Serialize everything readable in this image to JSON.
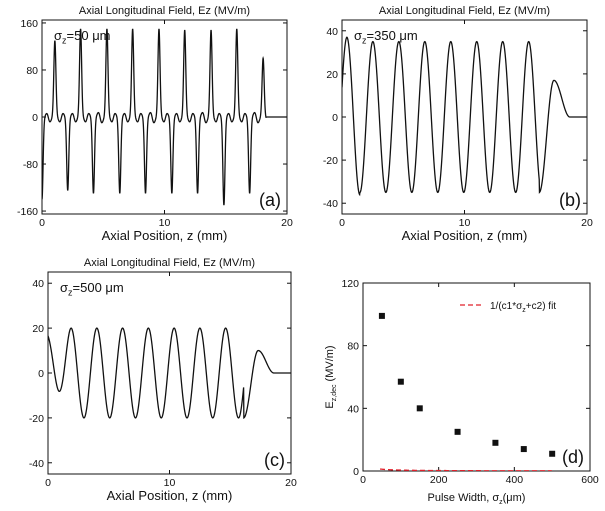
{
  "chart_data": [
    {
      "panel": "(a)",
      "type": "line",
      "title": "Axial Longitudinal Field, Ez (MV/m)",
      "annotation": "σz=50 μm",
      "xlabel": "Axial Position, z (mm)",
      "ylabel": "",
      "xlim": [
        0,
        20
      ],
      "ylim": [
        -165,
        165
      ],
      "xticks": [
        0,
        10,
        20
      ],
      "yticks": [
        -160,
        -80,
        0,
        80,
        160
      ],
      "xtick_labels": [
        "0",
        "10",
        "20"
      ],
      "ytick_labels": [
        "-160",
        "-80",
        "0",
        "80",
        "160"
      ],
      "grid": false,
      "series": [
        {
          "period_mm": 2.12,
          "positive_peaks": [
            [
              1.05,
              130
            ],
            [
              3.15,
              150
            ],
            [
              5.3,
              150
            ],
            [
              7.4,
              150
            ],
            [
              9.55,
              150
            ],
            [
              11.65,
              148
            ],
            [
              13.8,
              148
            ],
            [
              15.9,
              150
            ],
            [
              18.05,
              100
            ]
          ],
          "negative_peaks": [
            [
              0.0,
              -140
            ],
            [
              2.1,
              -125
            ],
            [
              4.2,
              -130
            ],
            [
              6.35,
              -130
            ],
            [
              8.45,
              -130
            ],
            [
              10.6,
              -130
            ],
            [
              12.7,
              -130
            ],
            [
              14.85,
              -150
            ],
            [
              16.95,
              -130
            ]
          ],
          "tail_start_mm": 18.3
        }
      ]
    },
    {
      "panel": "(b)",
      "type": "line",
      "title": "Axial Longitudinal Field, Ez (MV/m)",
      "annotation": "σz=350 μm",
      "xlabel": "Axial Position, z (mm)",
      "ylabel": "",
      "xlim": [
        0,
        20
      ],
      "ylim": [
        -45,
        45
      ],
      "xticks": [
        0,
        10,
        20
      ],
      "yticks": [
        -40,
        -20,
        0,
        20,
        40
      ],
      "xtick_labels": [
        "0",
        "10",
        "20"
      ],
      "ytick_labels": [
        "-40",
        "-20",
        "0",
        "20",
        "40"
      ],
      "grid": false,
      "series": [
        {
          "period_mm": 2.12,
          "amplitude": 35,
          "first_max_mm": 0.4,
          "first_max_value": 37,
          "last_min_mm": 16.1,
          "end_bump_mm": 17.3,
          "end_bump_value": 17,
          "tail_start_mm": 18.6
        }
      ]
    },
    {
      "panel": "(c)",
      "type": "line",
      "title": "Axial Longitudinal Field, Ez (MV/m)",
      "annotation": "σz=500 μm",
      "xlabel": "Axial Position, z (mm)",
      "ylabel": "",
      "xlim": [
        0,
        20
      ],
      "ylim": [
        -45,
        45
      ],
      "xticks": [
        0,
        10,
        20
      ],
      "yticks": [
        -40,
        -20,
        0,
        20,
        40
      ],
      "xtick_labels": [
        "0",
        "10",
        "20"
      ],
      "ytick_labels": [
        "-40",
        "-20",
        "0",
        "20",
        "40"
      ],
      "grid": false,
      "series": [
        {
          "period_mm": 2.12,
          "amplitude": 20,
          "start_value": 17,
          "first_max_mm": 1.9,
          "last_min_mm": 16.1,
          "end_bump_mm": 17.3,
          "end_bump_value": 10,
          "tail_start_mm": 18.6
        }
      ]
    },
    {
      "panel": "(d)",
      "type": "scatter",
      "title": "",
      "xlabel": "Pulse Width, σz(μm)",
      "ylabel": "Ez,dec (MV/m)",
      "xlim": [
        0,
        600
      ],
      "ylim": [
        0,
        120
      ],
      "xticks": [
        0,
        200,
        400,
        600
      ],
      "yticks": [
        0,
        40,
        80,
        120
      ],
      "xtick_labels": [
        "0",
        "200",
        "400",
        "600"
      ],
      "ytick_labels": [
        "0",
        "40",
        "80",
        "120"
      ],
      "grid": false,
      "legend_position": "top-right",
      "series": [
        {
          "name": "",
          "x": [
            50,
            100,
            150,
            250,
            350,
            425,
            500
          ],
          "y": [
            99,
            57,
            40,
            25,
            18,
            14,
            11
          ],
          "marker": "square",
          "color": "#111111"
        },
        {
          "name": "1/(c1*σz+c2) fit",
          "type": "line",
          "fit_c1": 0.00171,
          "fit_c2": 0.00148,
          "x_range": [
            45,
            500
          ],
          "color": "#e0212b",
          "dashed": true
        }
      ]
    }
  ]
}
